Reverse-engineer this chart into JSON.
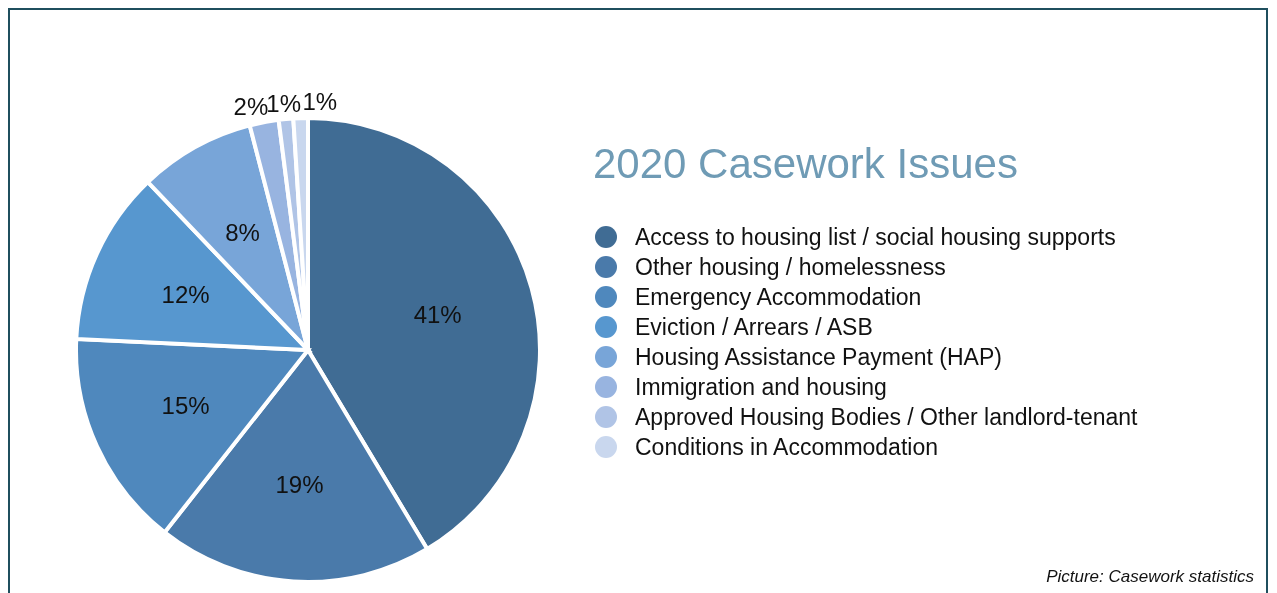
{
  "chart_data": {
    "type": "pie",
    "title": "2020 Casework Issues",
    "categories": [
      "Access to housing list / social housing supports",
      "Other housing / homelessness",
      "Emergency Accommodation",
      "Eviction / Arrears / ASB",
      "Housing Assistance Payment (HAP)",
      "Immigration and housing",
      "Approved Housing Bodies / Other landlord-tenant",
      "Conditions in Accommodation"
    ],
    "values": [
      41,
      19,
      15,
      12,
      8,
      2,
      1,
      1
    ],
    "value_labels": [
      "41%",
      "19%",
      "15%",
      "12%",
      "8%",
      "2%",
      "1%",
      "1%"
    ],
    "colors": [
      "#406c94",
      "#4a7aaa",
      "#4f88bd",
      "#5797cf",
      "#78a5d8",
      "#98b4e0",
      "#b0c4e6",
      "#c9d7ee"
    ],
    "legend": "right",
    "annotations": [
      "Picture: Casework statistics"
    ]
  }
}
